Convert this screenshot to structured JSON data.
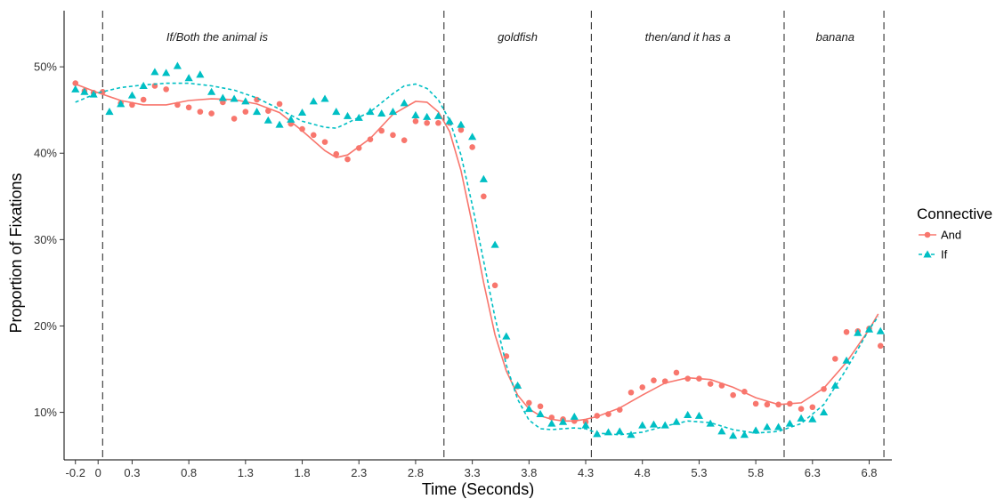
{
  "chart_data": {
    "type": "scatter",
    "xlabel": "Time (Seconds)",
    "ylabel": "Proportion of Fixations",
    "xlim": [
      -0.3,
      7.0
    ],
    "ylim": [
      0.045,
      0.565
    ],
    "x_ticks": [
      -0.2,
      0,
      0.3,
      0.8,
      1.3,
      1.8,
      2.3,
      2.8,
      3.3,
      3.8,
      4.3,
      4.8,
      5.3,
      5.8,
      6.3,
      6.8
    ],
    "x_tick_labels": [
      "-0.2",
      "0",
      "0.3",
      "0.8",
      "1.3",
      "1.8",
      "2.3",
      "2.8",
      "3.3",
      "3.8",
      "4.3",
      "4.8",
      "5.3",
      "5.8",
      "6.3",
      "6.8"
    ],
    "y_ticks": [
      0.1,
      0.2,
      0.3,
      0.4,
      0.5
    ],
    "y_tick_labels": [
      "10%",
      "20%",
      "30%",
      "40%",
      "50%"
    ],
    "grid": false,
    "region_boundaries": [
      0.04,
      3.05,
      4.35,
      6.05,
      6.93
    ],
    "region_labels": [
      {
        "x": 1.05,
        "text": "If/Both the animal is"
      },
      {
        "x": 3.7,
        "text": "goldfish"
      },
      {
        "x": 5.2,
        "text": "then/and it has a"
      },
      {
        "x": 6.5,
        "text": "banana"
      }
    ],
    "legend": {
      "title": "Connective",
      "position": "right"
    },
    "series": [
      {
        "name": "And",
        "color": "#F8766D",
        "marker": "circle",
        "line": "solid",
        "points": [
          [
            -0.2,
            0.481
          ],
          [
            -0.12,
            0.472
          ],
          [
            -0.04,
            0.47
          ],
          [
            0.04,
            0.471
          ],
          [
            0.2,
            0.458
          ],
          [
            0.3,
            0.456
          ],
          [
            0.4,
            0.462
          ],
          [
            0.5,
            0.478
          ],
          [
            0.6,
            0.474
          ],
          [
            0.7,
            0.456
          ],
          [
            0.8,
            0.453
          ],
          [
            0.9,
            0.448
          ],
          [
            1.0,
            0.446
          ],
          [
            1.1,
            0.459
          ],
          [
            1.2,
            0.44
          ],
          [
            1.3,
            0.448
          ],
          [
            1.4,
            0.462
          ],
          [
            1.5,
            0.449
          ],
          [
            1.6,
            0.457
          ],
          [
            1.7,
            0.434
          ],
          [
            1.8,
            0.428
          ],
          [
            1.9,
            0.421
          ],
          [
            2.0,
            0.413
          ],
          [
            2.1,
            0.399
          ],
          [
            2.2,
            0.393
          ],
          [
            2.3,
            0.406
          ],
          [
            2.4,
            0.416
          ],
          [
            2.5,
            0.426
          ],
          [
            2.6,
            0.421
          ],
          [
            2.7,
            0.415
          ],
          [
            2.8,
            0.437
          ],
          [
            2.9,
            0.435
          ],
          [
            3.0,
            0.435
          ],
          [
            3.1,
            0.435
          ],
          [
            3.2,
            0.427
          ],
          [
            3.3,
            0.407
          ],
          [
            3.4,
            0.35
          ],
          [
            3.5,
            0.247
          ],
          [
            3.6,
            0.165
          ],
          [
            3.7,
            0.13
          ],
          [
            3.8,
            0.111
          ],
          [
            3.9,
            0.107
          ],
          [
            4.0,
            0.094
          ],
          [
            4.1,
            0.092
          ],
          [
            4.2,
            0.09
          ],
          [
            4.3,
            0.089
          ],
          [
            4.4,
            0.096
          ],
          [
            4.5,
            0.098
          ],
          [
            4.6,
            0.103
          ],
          [
            4.7,
            0.123
          ],
          [
            4.8,
            0.129
          ],
          [
            4.9,
            0.137
          ],
          [
            5.0,
            0.136
          ],
          [
            5.1,
            0.146
          ],
          [
            5.2,
            0.139
          ],
          [
            5.3,
            0.139
          ],
          [
            5.4,
            0.133
          ],
          [
            5.5,
            0.131
          ],
          [
            5.6,
            0.12
          ],
          [
            5.7,
            0.124
          ],
          [
            5.8,
            0.11
          ],
          [
            5.9,
            0.109
          ],
          [
            6.0,
            0.109
          ],
          [
            6.1,
            0.11
          ],
          [
            6.2,
            0.104
          ],
          [
            6.3,
            0.106
          ],
          [
            6.4,
            0.127
          ],
          [
            6.5,
            0.162
          ],
          [
            6.6,
            0.193
          ],
          [
            6.7,
            0.194
          ],
          [
            6.8,
            0.197
          ],
          [
            6.9,
            0.177
          ]
        ],
        "smooth": [
          [
            -0.2,
            0.48
          ],
          [
            0.0,
            0.47
          ],
          [
            0.2,
            0.461
          ],
          [
            0.4,
            0.456
          ],
          [
            0.6,
            0.456
          ],
          [
            0.8,
            0.461
          ],
          [
            1.0,
            0.463
          ],
          [
            1.2,
            0.462
          ],
          [
            1.4,
            0.457
          ],
          [
            1.6,
            0.447
          ],
          [
            1.8,
            0.426
          ],
          [
            2.0,
            0.403
          ],
          [
            2.1,
            0.395
          ],
          [
            2.2,
            0.398
          ],
          [
            2.4,
            0.417
          ],
          [
            2.6,
            0.445
          ],
          [
            2.8,
            0.46
          ],
          [
            2.9,
            0.459
          ],
          [
            3.0,
            0.448
          ],
          [
            3.1,
            0.425
          ],
          [
            3.2,
            0.38
          ],
          [
            3.3,
            0.318
          ],
          [
            3.4,
            0.25
          ],
          [
            3.5,
            0.19
          ],
          [
            3.6,
            0.148
          ],
          [
            3.7,
            0.12
          ],
          [
            3.8,
            0.104
          ],
          [
            3.9,
            0.096
          ],
          [
            4.0,
            0.092
          ],
          [
            4.1,
            0.09
          ],
          [
            4.2,
            0.09
          ],
          [
            4.3,
            0.092
          ],
          [
            4.4,
            0.095
          ],
          [
            4.6,
            0.105
          ],
          [
            4.8,
            0.12
          ],
          [
            5.0,
            0.134
          ],
          [
            5.2,
            0.14
          ],
          [
            5.4,
            0.138
          ],
          [
            5.6,
            0.129
          ],
          [
            5.8,
            0.117
          ],
          [
            6.0,
            0.109
          ],
          [
            6.2,
            0.111
          ],
          [
            6.4,
            0.128
          ],
          [
            6.6,
            0.158
          ],
          [
            6.8,
            0.196
          ],
          [
            6.88,
            0.214
          ]
        ]
      },
      {
        "name": "If",
        "color": "#00BFC4",
        "marker": "triangle",
        "line": "dashed",
        "points": [
          [
            -0.2,
            0.474
          ],
          [
            -0.12,
            0.471
          ],
          [
            -0.04,
            0.468
          ],
          [
            0.1,
            0.448
          ],
          [
            0.2,
            0.457
          ],
          [
            0.3,
            0.467
          ],
          [
            0.4,
            0.478
          ],
          [
            0.5,
            0.494
          ],
          [
            0.6,
            0.493
          ],
          [
            0.7,
            0.501
          ],
          [
            0.8,
            0.487
          ],
          [
            0.9,
            0.491
          ],
          [
            1.0,
            0.471
          ],
          [
            1.1,
            0.464
          ],
          [
            1.2,
            0.463
          ],
          [
            1.3,
            0.46
          ],
          [
            1.4,
            0.448
          ],
          [
            1.5,
            0.438
          ],
          [
            1.6,
            0.433
          ],
          [
            1.7,
            0.439
          ],
          [
            1.8,
            0.447
          ],
          [
            1.9,
            0.46
          ],
          [
            2.0,
            0.463
          ],
          [
            2.1,
            0.448
          ],
          [
            2.2,
            0.443
          ],
          [
            2.3,
            0.441
          ],
          [
            2.4,
            0.448
          ],
          [
            2.5,
            0.446
          ],
          [
            2.6,
            0.448
          ],
          [
            2.7,
            0.458
          ],
          [
            2.8,
            0.444
          ],
          [
            2.9,
            0.442
          ],
          [
            3.0,
            0.443
          ],
          [
            3.1,
            0.437
          ],
          [
            3.2,
            0.433
          ],
          [
            3.3,
            0.419
          ],
          [
            3.4,
            0.37
          ],
          [
            3.5,
            0.294
          ],
          [
            3.6,
            0.188
          ],
          [
            3.7,
            0.131
          ],
          [
            3.8,
            0.104
          ],
          [
            3.9,
            0.098
          ],
          [
            4.0,
            0.087
          ],
          [
            4.1,
            0.089
          ],
          [
            4.2,
            0.095
          ],
          [
            4.3,
            0.085
          ],
          [
            4.4,
            0.075
          ],
          [
            4.5,
            0.077
          ],
          [
            4.6,
            0.078
          ],
          [
            4.7,
            0.074
          ],
          [
            4.8,
            0.085
          ],
          [
            4.9,
            0.086
          ],
          [
            5.0,
            0.085
          ],
          [
            5.1,
            0.089
          ],
          [
            5.2,
            0.097
          ],
          [
            5.3,
            0.096
          ],
          [
            5.4,
            0.087
          ],
          [
            5.5,
            0.078
          ],
          [
            5.6,
            0.073
          ],
          [
            5.7,
            0.074
          ],
          [
            5.8,
            0.079
          ],
          [
            5.9,
            0.083
          ],
          [
            6.0,
            0.083
          ],
          [
            6.1,
            0.087
          ],
          [
            6.2,
            0.093
          ],
          [
            6.3,
            0.092
          ],
          [
            6.4,
            0.1
          ],
          [
            6.5,
            0.131
          ],
          [
            6.6,
            0.16
          ],
          [
            6.7,
            0.192
          ],
          [
            6.8,
            0.196
          ],
          [
            6.9,
            0.194
          ]
        ],
        "smooth": [
          [
            -0.2,
            0.459
          ],
          [
            0.0,
            0.47
          ],
          [
            0.2,
            0.476
          ],
          [
            0.4,
            0.479
          ],
          [
            0.6,
            0.481
          ],
          [
            0.8,
            0.481
          ],
          [
            1.0,
            0.478
          ],
          [
            1.2,
            0.473
          ],
          [
            1.4,
            0.464
          ],
          [
            1.6,
            0.451
          ],
          [
            1.8,
            0.437
          ],
          [
            2.0,
            0.43
          ],
          [
            2.1,
            0.429
          ],
          [
            2.2,
            0.435
          ],
          [
            2.4,
            0.448
          ],
          [
            2.6,
            0.469
          ],
          [
            2.7,
            0.478
          ],
          [
            2.8,
            0.48
          ],
          [
            2.9,
            0.475
          ],
          [
            3.0,
            0.462
          ],
          [
            3.1,
            0.438
          ],
          [
            3.2,
            0.398
          ],
          [
            3.3,
            0.34
          ],
          [
            3.4,
            0.275
          ],
          [
            3.5,
            0.21
          ],
          [
            3.6,
            0.155
          ],
          [
            3.7,
            0.115
          ],
          [
            3.8,
            0.091
          ],
          [
            3.9,
            0.081
          ],
          [
            4.0,
            0.08
          ],
          [
            4.1,
            0.081
          ],
          [
            4.2,
            0.082
          ],
          [
            4.3,
            0.081
          ],
          [
            4.4,
            0.076
          ],
          [
            4.6,
            0.074
          ],
          [
            4.8,
            0.077
          ],
          [
            5.0,
            0.084
          ],
          [
            5.2,
            0.09
          ],
          [
            5.4,
            0.088
          ],
          [
            5.6,
            0.08
          ],
          [
            5.8,
            0.076
          ],
          [
            6.0,
            0.078
          ],
          [
            6.2,
            0.087
          ],
          [
            6.4,
            0.109
          ],
          [
            6.6,
            0.15
          ],
          [
            6.8,
            0.196
          ],
          [
            6.88,
            0.211
          ]
        ]
      }
    ]
  }
}
